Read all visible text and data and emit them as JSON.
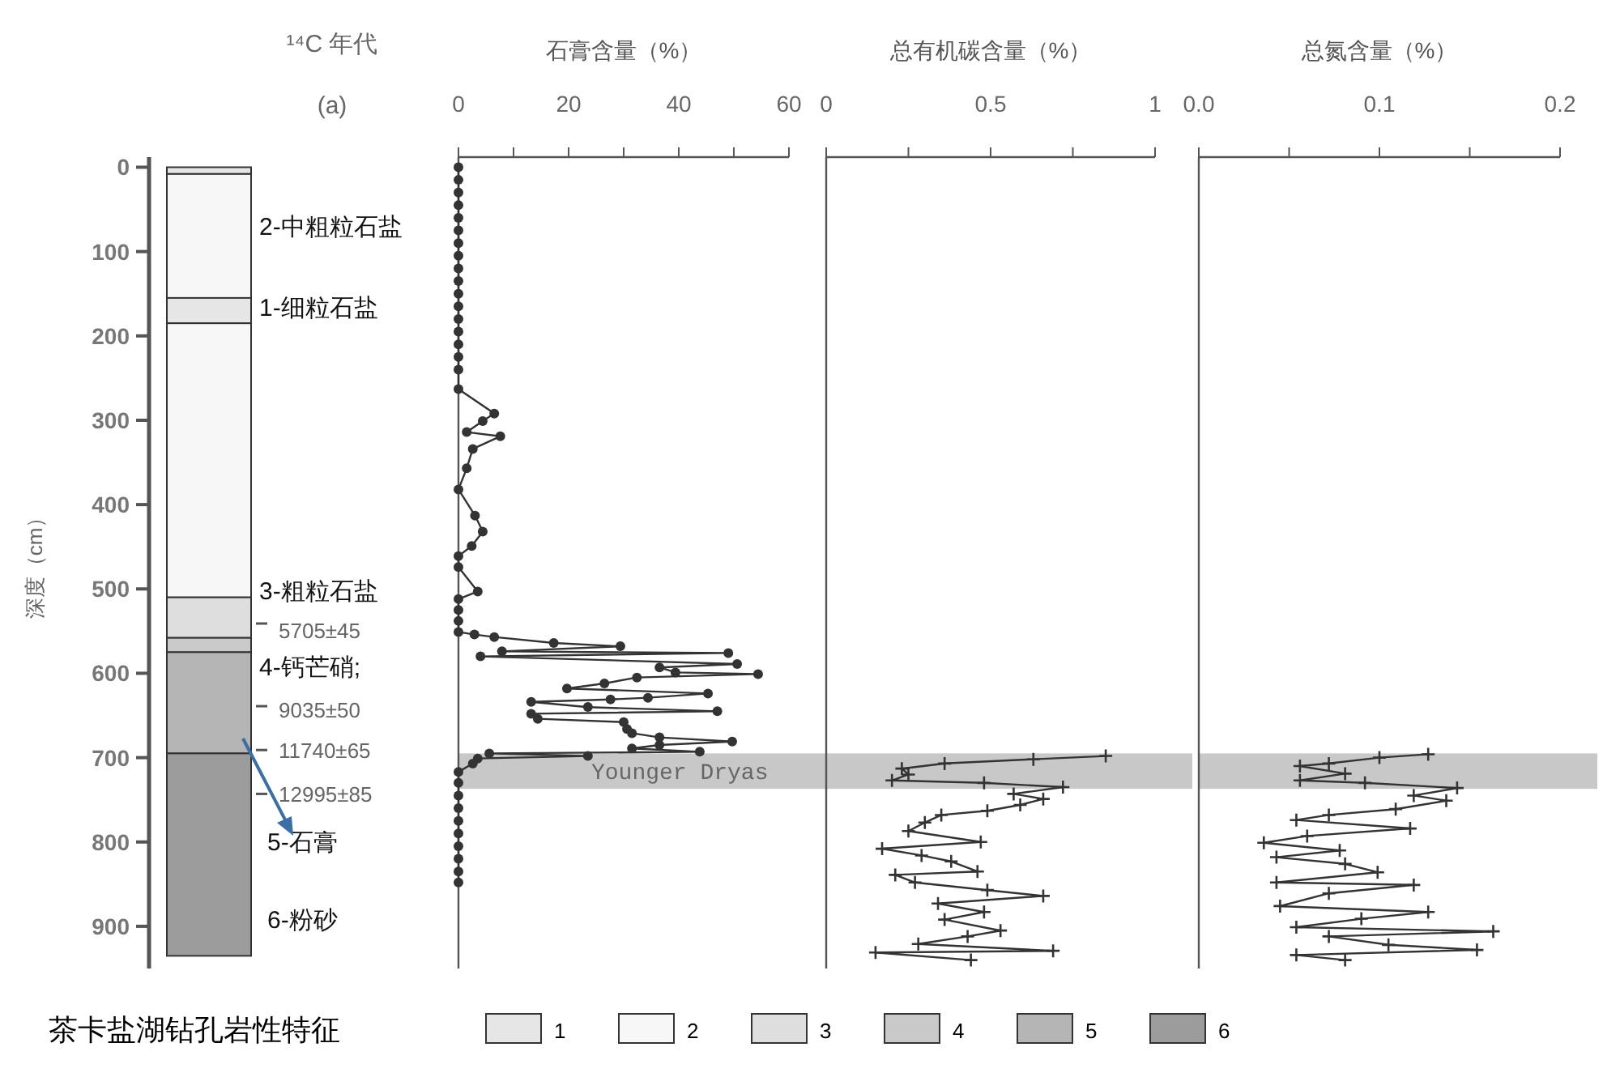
{
  "chart_data": [
    {
      "type": "bar",
      "stacked": true,
      "title": "茶卡盐湖钻孔岩性特征",
      "ylabel": "深度（cm）",
      "categories": [
        null
      ],
      "ylim": [
        950,
        -12
      ],
      "yticks": [
        0,
        100,
        200,
        300,
        400,
        500,
        600,
        700,
        800,
        900
      ],
      "legend": "bottom",
      "series": [
        {
          "name": "1",
          "color": "#e6e6e6",
          "values": [
            8
          ]
        },
        {
          "name": "2",
          "color": "#f7f7f7",
          "values": [
            147
          ]
        },
        {
          "color": "#e6e6e6",
          "values": [
            30
          ]
        },
        {
          "color": "#f7f7f7",
          "values": [
            325
          ]
        },
        {
          "name": "3",
          "color": "#dedede",
          "values": [
            48
          ]
        },
        {
          "name": "4",
          "color": "#c9c9c9",
          "values": [
            17
          ]
        },
        {
          "name": "5",
          "color": "#b5b5b5",
          "values": [
            120
          ]
        },
        {
          "name": "6",
          "color": "#9c9c9c",
          "values": [
            240
          ]
        }
      ],
      "annotations": [
        "¹⁴C 年代",
        "(a)",
        "2-中粗粒石盐",
        "1-细粒石盐",
        "3-粗粒石盐",
        "5705±45",
        "4-钙芒硝;",
        "9035±50",
        "11740±65",
        "12995±85",
        "5-石膏",
        "6-粉砂"
      ]
    },
    {
      "type": "line",
      "xlabel": "石膏含量（%）",
      "xlim": [
        0,
        60
      ],
      "xticks": [
        0,
        {
          "value": 10,
          "label": null
        },
        20,
        {
          "value": 30,
          "label": null
        },
        40,
        {
          "value": 50,
          "label": null
        },
        60
      ],
      "ylim": [
        950,
        -12
      ],
      "tick_labels": "x",
      "marker": "circle",
      "line_style": "solid",
      "bands": [
        {
          "axis": "y",
          "from": 695,
          "to": 737,
          "label": "Younger Dryas",
          "color": "#c8c8c8"
        }
      ],
      "series": [
        {
          "color": "#333333",
          "x": [
            0,
            0,
            0,
            0,
            0,
            0,
            0,
            0,
            0,
            0,
            0,
            0,
            0,
            0,
            0,
            0,
            0,
            0,
            6.5,
            4.4,
            1.5,
            7.6,
            2.6,
            1.5,
            0,
            3,
            4.4,
            2.4,
            0,
            0,
            3.5,
            0,
            0,
            0,
            0,
            2.9,
            6.5,
            17.3,
            29.4,
            7.9,
            49,
            4,
            50.6,
            36.5,
            39.4,
            54.4,
            32.4,
            26.5,
            19.7,
            45.3,
            34.4,
            27.6,
            13.2,
            23.5,
            47,
            13.2,
            14.4,
            30,
            30.6,
            31.5,
            36.5,
            49.7,
            36.5,
            31.5,
            43.8,
            5.6,
            23.5,
            3.5,
            2.6,
            0,
            0,
            0,
            0,
            0,
            0,
            0,
            0,
            0,
            0
          ],
          "values": [
            0,
            15,
            30,
            45,
            60,
            75,
            90,
            105,
            120,
            135,
            150,
            165,
            180,
            195,
            210,
            225,
            240,
            263,
            292,
            301,
            314,
            319,
            334,
            357,
            382,
            413,
            432,
            449,
            461,
            474,
            503,
            512,
            525,
            538,
            551,
            554,
            557,
            564,
            568,
            574,
            576,
            580,
            589,
            593,
            599,
            601,
            605,
            612,
            618,
            624,
            629,
            631,
            634,
            640,
            645,
            648,
            654,
            658,
            666,
            671,
            676,
            681,
            685,
            689,
            693,
            695,
            698,
            701,
            707,
            717,
            730,
            745,
            760,
            775,
            790,
            805,
            820,
            835,
            848
          ]
        }
      ]
    },
    {
      "type": "line",
      "xlabel": "总有机碳含量（%）",
      "xlim": [
        0,
        1
      ],
      "xticks": [
        0,
        {
          "value": 0.25,
          "label": null
        },
        0.5,
        {
          "value": 0.75,
          "label": null
        },
        1
      ],
      "ylim": [
        950,
        -12
      ],
      "tick_labels": "x",
      "marker": "cross",
      "line_style": "solid",
      "bands": [
        {
          "axis": "y",
          "from": 695,
          "to": 737,
          "color": "#c8c8c8"
        }
      ],
      "series": [
        {
          "color": "#333333",
          "x": [
            0.85,
            0.63,
            0.36,
            0.23,
            0.25,
            0.2,
            0.48,
            0.72,
            0.57,
            0.66,
            0.59,
            0.49,
            0.35,
            0.3,
            0.25,
            0.47,
            0.17,
            0.29,
            0.38,
            0.46,
            0.21,
            0.27,
            0.49,
            0.66,
            0.34,
            0.48,
            0.36,
            0.53,
            0.43,
            0.28,
            0.69,
            0.15,
            0.44
          ],
          "values": [
            698,
            702,
            707,
            713,
            720,
            727,
            730,
            735,
            743,
            749,
            756,
            763,
            768,
            777,
            787,
            800,
            808,
            816,
            823,
            835,
            839,
            848,
            857,
            864,
            873,
            883,
            892,
            905,
            912,
            921,
            929,
            931,
            940
          ]
        }
      ]
    },
    {
      "type": "line",
      "xlabel": "总氮含量（%）",
      "xlim": [
        0,
        0.2
      ],
      "xticks": [
        {
          "value": 0,
          "label": "0.0"
        },
        {
          "value": 0.05,
          "label": null
        },
        0.1,
        {
          "value": 0.15,
          "label": null
        },
        0.2
      ],
      "ylim": [
        950,
        -12
      ],
      "tick_labels": "x",
      "marker": "cross",
      "line_style": "solid",
      "bands": [
        {
          "axis": "y",
          "from": 695,
          "to": 737,
          "color": "#c8c8c8"
        }
      ],
      "series": [
        {
          "color": "#333333",
          "x": [
            0.127,
            0.1,
            0.072,
            0.056,
            0.081,
            0.056,
            0.092,
            0.143,
            0.119,
            0.137,
            0.109,
            0.072,
            0.054,
            0.117,
            0.06,
            0.036,
            0.078,
            0.043,
            0.081,
            0.099,
            0.043,
            0.119,
            0.072,
            0.045,
            0.127,
            0.09,
            0.054,
            0.163,
            0.072,
            0.105,
            0.154,
            0.054,
            0.081
          ],
          "values": [
            696,
            700,
            707,
            710,
            719,
            727,
            730,
            736,
            745,
            751,
            761,
            768,
            774,
            784,
            793,
            801,
            810,
            818,
            826,
            836,
            848,
            851,
            861,
            876,
            883,
            891,
            901,
            906,
            912,
            922,
            928,
            934,
            940
          ]
        }
      ]
    }
  ]
}
